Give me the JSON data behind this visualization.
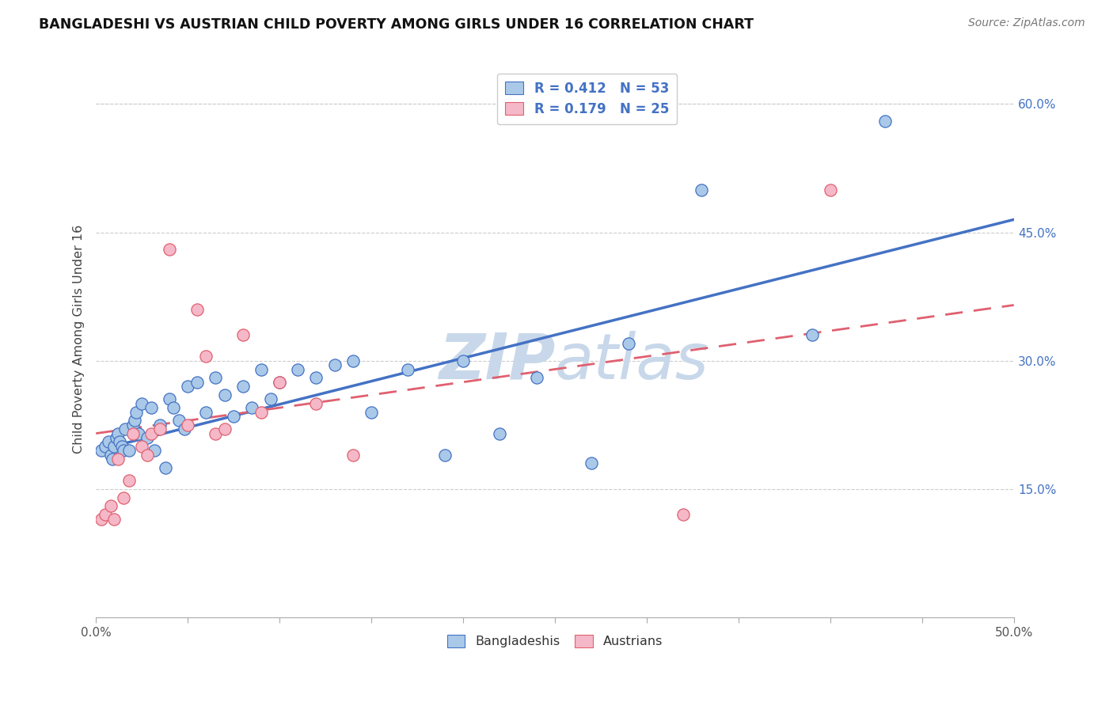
{
  "title": "BANGLADESHI VS AUSTRIAN CHILD POVERTY AMONG GIRLS UNDER 16 CORRELATION CHART",
  "source": "Source: ZipAtlas.com",
  "ylabel": "Child Poverty Among Girls Under 16",
  "xlim": [
    0.0,
    0.5
  ],
  "ylim": [
    0.0,
    0.65
  ],
  "yticks_right": [
    0.15,
    0.3,
    0.45,
    0.6
  ],
  "ytick_labels_right": [
    "15.0%",
    "30.0%",
    "45.0%",
    "60.0%"
  ],
  "blue_color": "#aac9e8",
  "pink_color": "#f5b8c8",
  "trend_blue": "#4472c4",
  "trend_pink": "#e06070",
  "watermark_color": "#c8d8ea",
  "blue_intercept": 0.195,
  "blue_slope": 0.54,
  "pink_intercept": 0.215,
  "pink_slope": 0.3,
  "blue_x": [
    0.003,
    0.005,
    0.007,
    0.008,
    0.009,
    0.01,
    0.011,
    0.012,
    0.013,
    0.014,
    0.015,
    0.016,
    0.018,
    0.02,
    0.021,
    0.022,
    0.023,
    0.025,
    0.028,
    0.03,
    0.032,
    0.035,
    0.038,
    0.04,
    0.042,
    0.045,
    0.048,
    0.05,
    0.055,
    0.06,
    0.065,
    0.07,
    0.075,
    0.08,
    0.085,
    0.09,
    0.095,
    0.1,
    0.11,
    0.12,
    0.13,
    0.14,
    0.15,
    0.17,
    0.19,
    0.2,
    0.22,
    0.24,
    0.27,
    0.29,
    0.33,
    0.39,
    0.43
  ],
  "blue_y": [
    0.195,
    0.2,
    0.205,
    0.19,
    0.185,
    0.2,
    0.21,
    0.215,
    0.205,
    0.2,
    0.195,
    0.22,
    0.195,
    0.225,
    0.23,
    0.24,
    0.215,
    0.25,
    0.21,
    0.245,
    0.195,
    0.225,
    0.175,
    0.255,
    0.245,
    0.23,
    0.22,
    0.27,
    0.275,
    0.24,
    0.28,
    0.26,
    0.235,
    0.27,
    0.245,
    0.29,
    0.255,
    0.275,
    0.29,
    0.28,
    0.295,
    0.3,
    0.24,
    0.29,
    0.19,
    0.3,
    0.215,
    0.28,
    0.18,
    0.32,
    0.5,
    0.33,
    0.58
  ],
  "pink_x": [
    0.003,
    0.005,
    0.008,
    0.01,
    0.012,
    0.015,
    0.018,
    0.02,
    0.025,
    0.028,
    0.03,
    0.035,
    0.04,
    0.05,
    0.055,
    0.06,
    0.065,
    0.07,
    0.08,
    0.09,
    0.1,
    0.12,
    0.14,
    0.32,
    0.4
  ],
  "pink_y": [
    0.115,
    0.12,
    0.13,
    0.115,
    0.185,
    0.14,
    0.16,
    0.215,
    0.2,
    0.19,
    0.215,
    0.22,
    0.43,
    0.225,
    0.36,
    0.305,
    0.215,
    0.22,
    0.33,
    0.24,
    0.275,
    0.25,
    0.19,
    0.12,
    0.5
  ]
}
